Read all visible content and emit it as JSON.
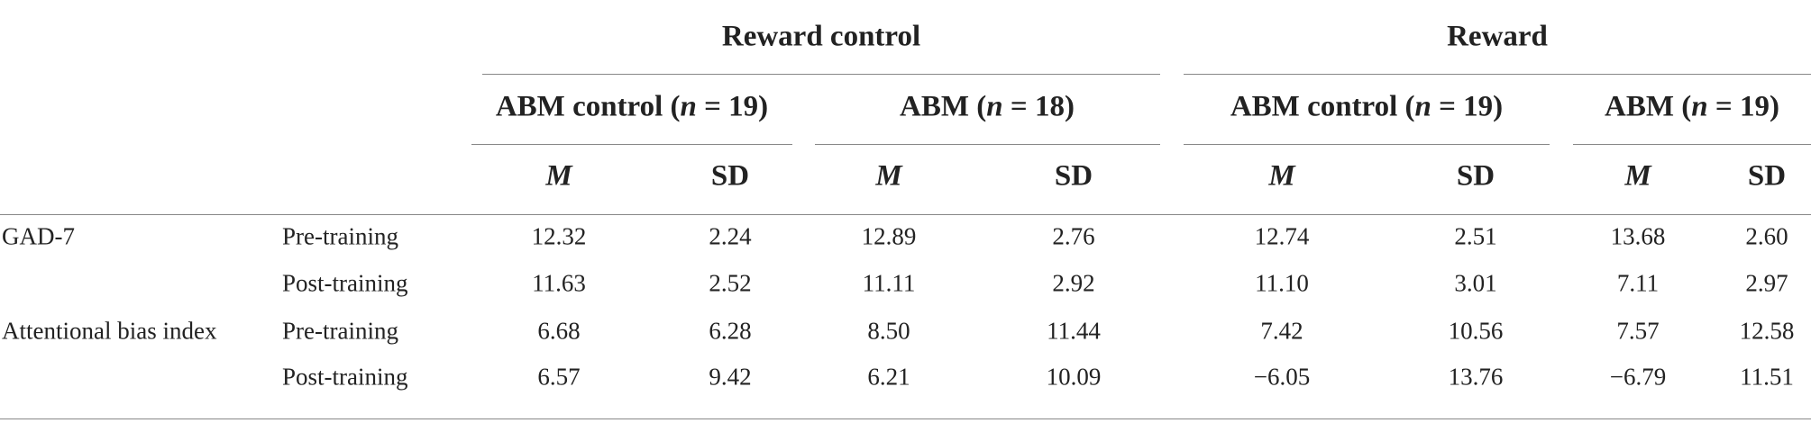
{
  "table": {
    "groups": [
      "Reward control",
      "Reward"
    ],
    "subgroups": [
      [
        "ABM control (",
        "n",
        " = 19)"
      ],
      [
        "ABM (",
        "n",
        " = 18)"
      ],
      [
        "ABM control (",
        "n",
        " = 19)"
      ],
      [
        "ABM (",
        "n",
        " = 19)"
      ]
    ],
    "stats": [
      "M",
      "SD",
      "M",
      "SD",
      "M",
      "SD",
      "M",
      "SD"
    ],
    "rows": [
      [
        "GAD-7",
        "Pre-training",
        "12.32",
        "2.24",
        "12.89",
        "2.76",
        "12.74",
        "2.51",
        "13.68",
        "2.60"
      ],
      [
        "",
        "Post-training",
        "11.63",
        "2.52",
        "11.11",
        "2.92",
        "11.10",
        "3.01",
        "7.11",
        "2.97"
      ],
      [
        "Attentional bias index",
        "Pre-training",
        "6.68",
        "6.28",
        "8.50",
        "11.44",
        "7.42",
        "10.56",
        "7.57",
        "12.58"
      ],
      [
        "",
        "Post-training",
        "6.57",
        "9.42",
        "6.21",
        "10.09",
        "−6.05",
        "13.76",
        "−6.79",
        "11.51"
      ]
    ]
  }
}
